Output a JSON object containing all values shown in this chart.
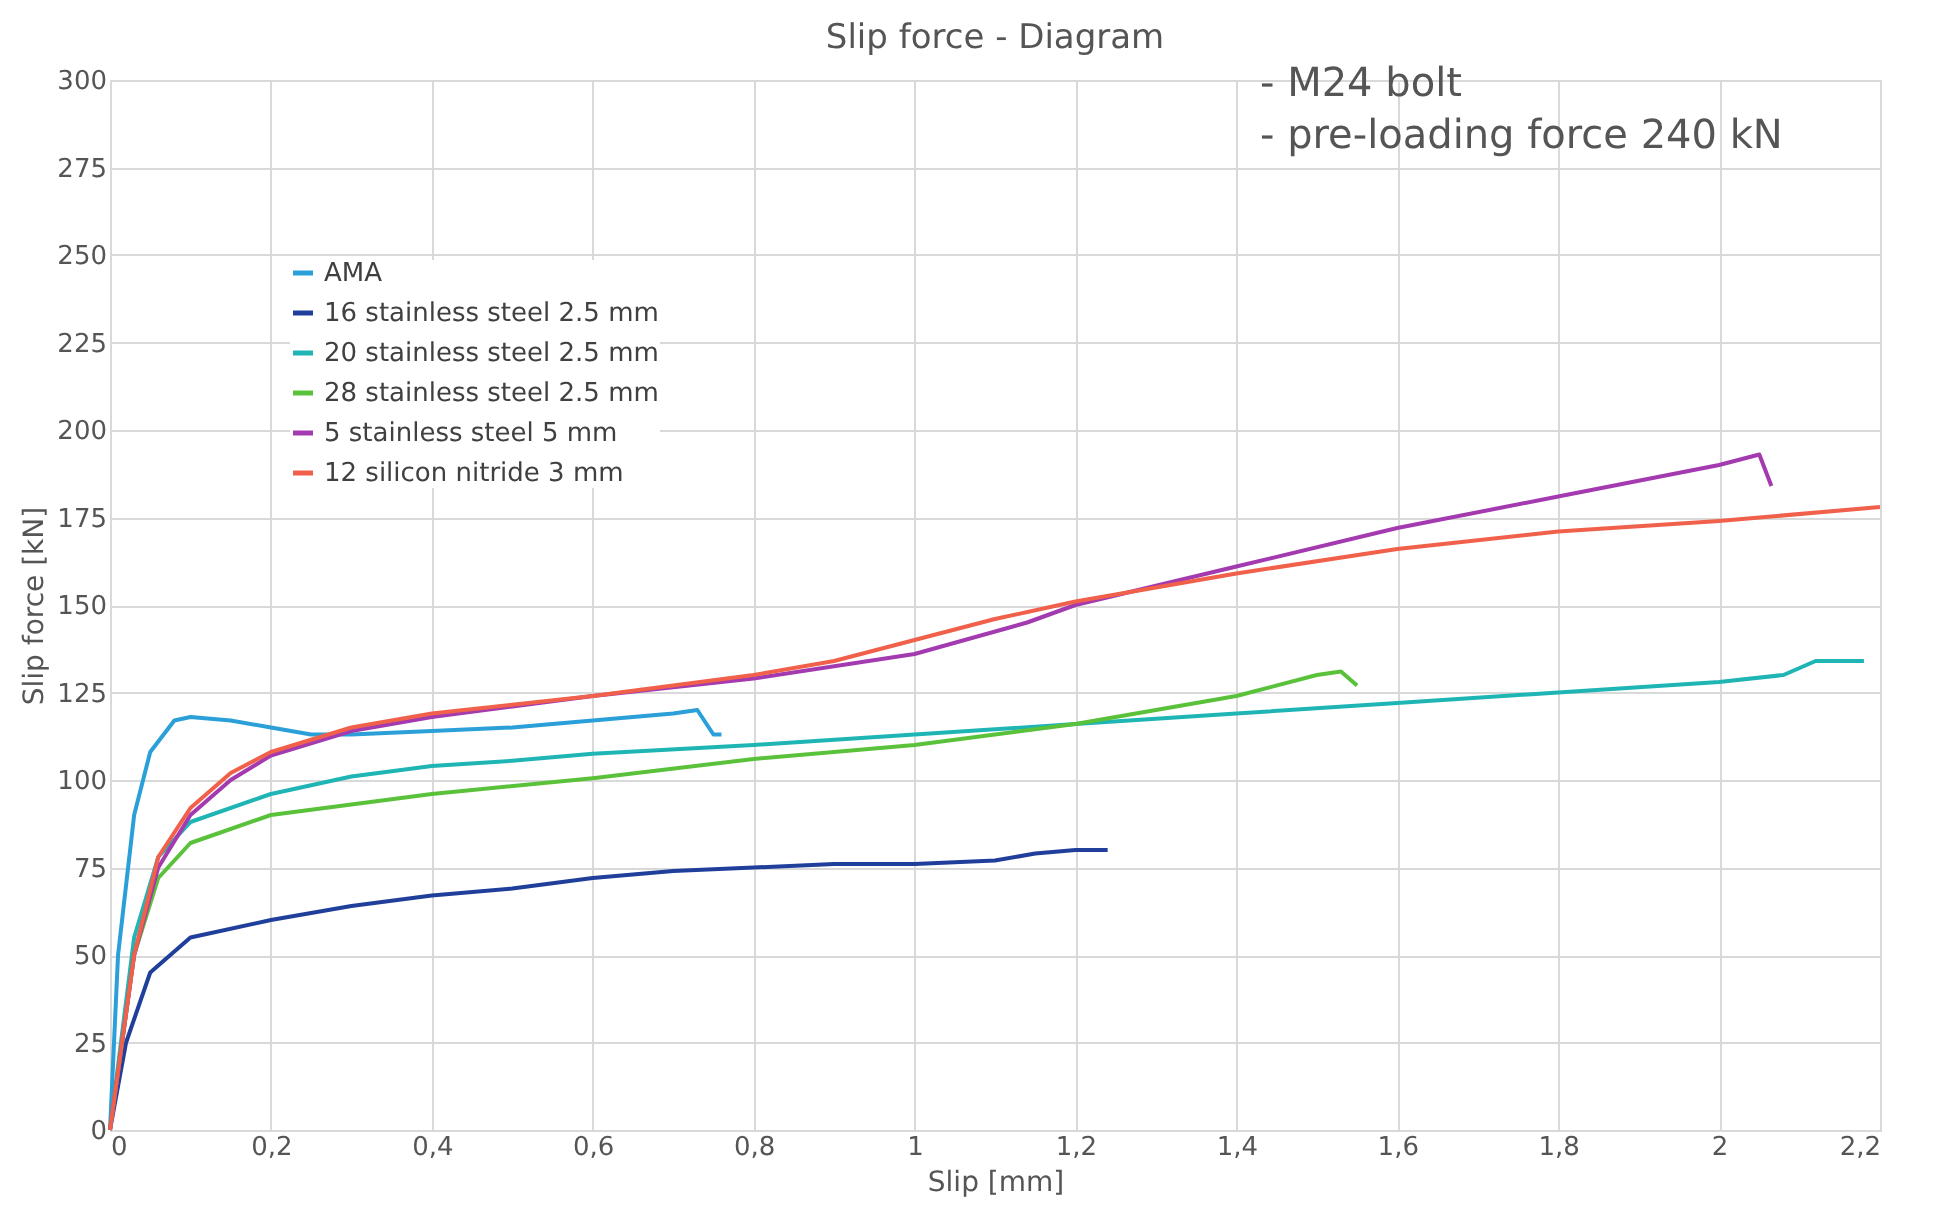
{
  "chart_data": {
    "type": "line",
    "title": "Slip force - Diagram",
    "xlabel": "Slip [mm]",
    "ylabel": "Slip force [kN]",
    "annotations": [
      "- M24 bolt",
      "- pre-loading force 240 kN"
    ],
    "xlim": [
      0,
      2.2
    ],
    "xticks": [
      0,
      {
        "value": 0.2,
        "label": "0,2"
      },
      {
        "value": 0.4,
        "label": "0,4"
      },
      {
        "value": 0.6,
        "label": "0,6"
      },
      {
        "value": 0.8,
        "label": "0,8"
      },
      1,
      {
        "value": 1.2,
        "label": "1,2"
      },
      {
        "value": 1.4,
        "label": "1,4"
      },
      {
        "value": 1.6,
        "label": "1,6"
      },
      {
        "value": 1.8,
        "label": "1,8"
      },
      2,
      {
        "value": 2.2,
        "label": "2,2"
      }
    ],
    "ylim": [
      0,
      300
    ],
    "yticks": [
      0,
      25,
      50,
      75,
      100,
      125,
      150,
      175,
      200,
      225,
      250,
      275,
      300
    ],
    "grid": true,
    "legend": "top left",
    "marker": "none",
    "line_style": "solid",
    "series": [
      {
        "name": "AMA",
        "color": "#2a9fd8",
        "x": [
          0,
          0.01,
          0.03,
          0.05,
          0.08,
          0.1,
          0.15,
          0.2,
          0.25,
          0.3,
          0.4,
          0.5,
          0.6,
          0.7,
          0.73,
          0.75,
          0.76
        ],
        "values": [
          0,
          50,
          90,
          108,
          117,
          118,
          117,
          115,
          113,
          113,
          114,
          115,
          117,
          119,
          120,
          113,
          113
        ]
      },
      {
        "name": "16 stainless steel 2.5 mm",
        "color": "#1f3f9a",
        "x": [
          0,
          0.02,
          0.05,
          0.1,
          0.2,
          0.3,
          0.4,
          0.5,
          0.6,
          0.7,
          0.8,
          0.9,
          1.0,
          1.1,
          1.15,
          1.2,
          1.24
        ],
        "values": [
          0,
          25,
          45,
          55,
          60,
          64,
          67,
          69,
          72,
          74,
          75,
          76,
          76,
          77,
          79,
          80,
          80
        ]
      },
      {
        "name": "20 stainless steel 2.5 mm",
        "color": "#1fb5b5",
        "x": [
          0,
          0.03,
          0.06,
          0.1,
          0.2,
          0.3,
          0.4,
          0.5,
          0.6,
          0.8,
          1.0,
          1.2,
          1.4,
          1.6,
          1.8,
          2.0,
          2.08,
          2.12,
          2.18
        ],
        "values": [
          0,
          55,
          78,
          88,
          96,
          101,
          104,
          105.5,
          107.5,
          110,
          113,
          116,
          119,
          122,
          125,
          128,
          130,
          134,
          134
        ]
      },
      {
        "name": "28 stainless steel 2.5 mm",
        "color": "#5ac23a",
        "x": [
          0,
          0.03,
          0.06,
          0.1,
          0.2,
          0.3,
          0.4,
          0.6,
          0.8,
          1.0,
          1.2,
          1.4,
          1.5,
          1.53,
          1.55
        ],
        "values": [
          0,
          50,
          72,
          82,
          90,
          93,
          96,
          100.5,
          106,
          110,
          116,
          124,
          130,
          131,
          127
        ]
      },
      {
        "name": "5 stainless steel 5 mm",
        "color": "#a43ab0",
        "x": [
          0,
          0.03,
          0.06,
          0.1,
          0.15,
          0.2,
          0.3,
          0.4,
          0.5,
          0.6,
          0.8,
          1.0,
          1.14,
          1.2,
          1.4,
          1.6,
          1.8,
          2.0,
          2.05,
          2.065
        ],
        "values": [
          0,
          50,
          75,
          90,
          100,
          107,
          114,
          118,
          121,
          124,
          129,
          136,
          145,
          150,
          161,
          172,
          181,
          190,
          193,
          184
        ]
      },
      {
        "name": "12 silicon nitride 3 mm",
        "color": "#f0604a",
        "x": [
          0,
          0.03,
          0.06,
          0.1,
          0.15,
          0.2,
          0.3,
          0.4,
          0.5,
          0.6,
          0.8,
          0.9,
          1.0,
          1.1,
          1.2,
          1.4,
          1.6,
          1.8,
          2.0,
          2.2
        ],
        "values": [
          0,
          50,
          78,
          92,
          102,
          108,
          115,
          119,
          121.5,
          124,
          130,
          134,
          140,
          146,
          151,
          159,
          166,
          171,
          174,
          178
        ]
      }
    ]
  }
}
